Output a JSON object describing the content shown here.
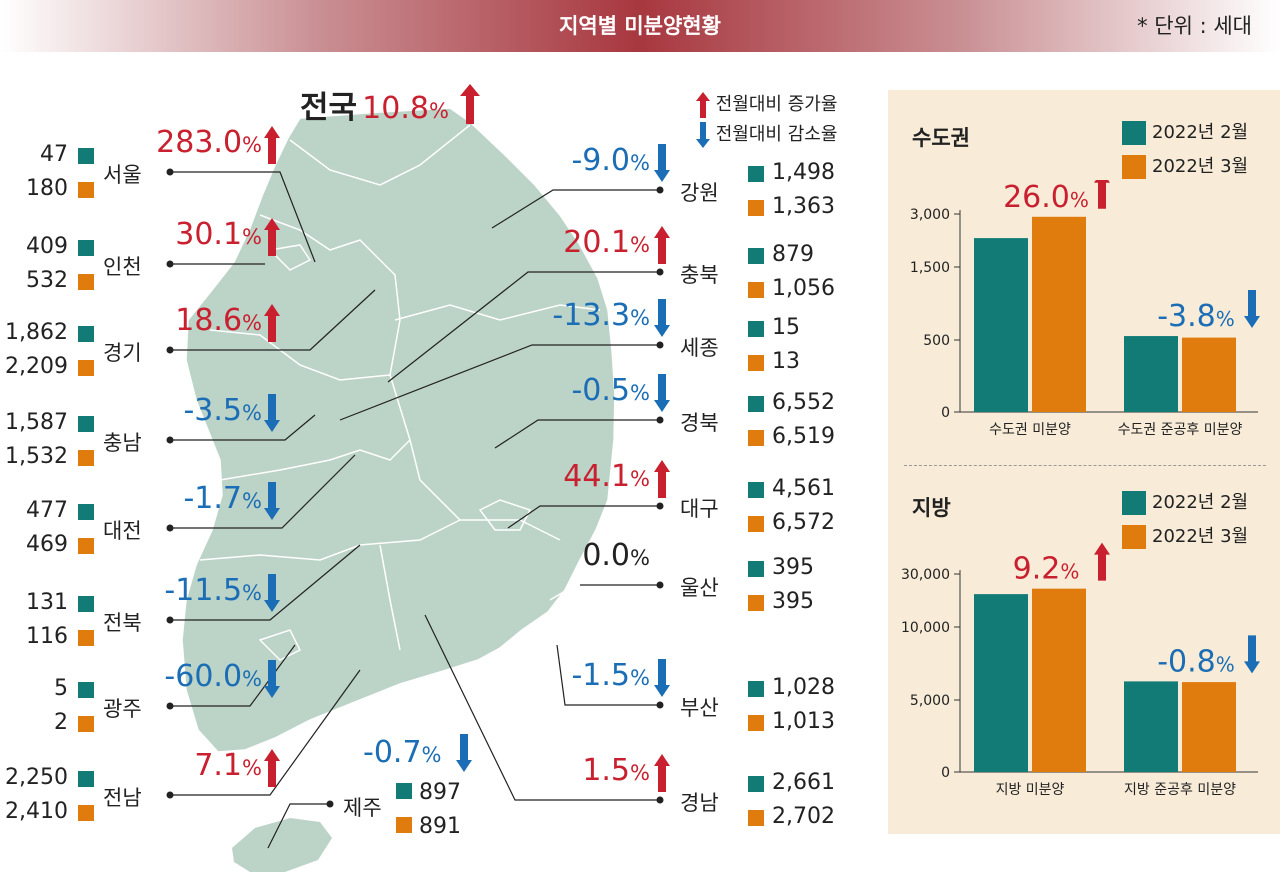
{
  "header": {
    "title": "지역별 미분양현황",
    "unit": "* 단위 : 세대"
  },
  "colors": {
    "feb": "#137b76",
    "mar": "#e07b0e",
    "up": "#c8202f",
    "down": "#1b6eb5",
    "land": "#bcd3c7",
    "panel_bg": "#f8ecd8"
  },
  "national": {
    "name": "전국",
    "rate": "10.8",
    "unit": "%",
    "trend": "up"
  },
  "legend": {
    "up_label": "전월대비 증가율",
    "down_label": "전월대비 감소율"
  },
  "regions_left": [
    {
      "name": "서울",
      "feb": "47",
      "mar": "180",
      "rate": "283.0",
      "trend": "up"
    },
    {
      "name": "인천",
      "feb": "409",
      "mar": "532",
      "rate": "30.1",
      "trend": "up"
    },
    {
      "name": "경기",
      "feb": "1,862",
      "mar": "2,209",
      "rate": "18.6",
      "trend": "up"
    },
    {
      "name": "충남",
      "feb": "1,587",
      "mar": "1,532",
      "rate": "-3.5",
      "trend": "down"
    },
    {
      "name": "대전",
      "feb": "477",
      "mar": "469",
      "rate": "-1.7",
      "trend": "down"
    },
    {
      "name": "전북",
      "feb": "131",
      "mar": "116",
      "rate": "-11.5",
      "trend": "down"
    },
    {
      "name": "광주",
      "feb": "5",
      "mar": "2",
      "rate": "-60.0",
      "trend": "down"
    },
    {
      "name": "전남",
      "feb": "2,250",
      "mar": "2,410",
      "rate": "7.1",
      "trend": "up"
    }
  ],
  "regions_right": [
    {
      "name": "강원",
      "feb": "1,498",
      "mar": "1,363",
      "rate": "-9.0",
      "trend": "down"
    },
    {
      "name": "충북",
      "feb": "879",
      "mar": "1,056",
      "rate": "20.1",
      "trend": "up"
    },
    {
      "name": "세종",
      "feb": "15",
      "mar": "13",
      "rate": "-13.3",
      "trend": "down"
    },
    {
      "name": "경북",
      "feb": "6,552",
      "mar": "6,519",
      "rate": "-0.5",
      "trend": "down"
    },
    {
      "name": "대구",
      "feb": "4,561",
      "mar": "6,572",
      "rate": "44.1",
      "trend": "up"
    },
    {
      "name": "울산",
      "feb": "395",
      "mar": "395",
      "rate": "0.0",
      "trend": "flat"
    },
    {
      "name": "부산",
      "feb": "1,028",
      "mar": "1,013",
      "rate": "-1.5",
      "trend": "down"
    },
    {
      "name": "경남",
      "feb": "2,661",
      "mar": "2,702",
      "rate": "1.5",
      "trend": "up"
    }
  ],
  "jeju": {
    "name": "제주",
    "feb": "897",
    "mar": "891",
    "rate": "-0.7",
    "trend": "down"
  },
  "chart_data": [
    {
      "type": "bar",
      "title": "수도권",
      "legend": [
        "2022년 2월",
        "2022년 3월"
      ],
      "categories": [
        "수도권 미분양",
        "수도권 준공후 미분양"
      ],
      "series": [
        {
          "name": "2022년 2월",
          "values": [
            2318,
            554
          ]
        },
        {
          "name": "2022년 3월",
          "values": [
            2921,
            533
          ]
        }
      ],
      "rate_labels": [
        "26.0",
        "-3.8"
      ],
      "rate_trends": [
        "up",
        "down"
      ],
      "yticks": [
        "3,000",
        "1,500",
        "500",
        "0"
      ],
      "ytick_values": [
        3000,
        1500,
        500,
        0
      ]
    },
    {
      "type": "bar",
      "title": "지방",
      "legend": [
        "2022년 2월",
        "2022년 3월"
      ],
      "categories": [
        "지방 미분양",
        "지방 준공후 미분양"
      ],
      "series": [
        {
          "name": "2022년 2월",
          "values": [
            22408,
            6276
          ]
        },
        {
          "name": "2022년 3월",
          "values": [
            24465,
            6226
          ]
        }
      ],
      "rate_labels": [
        "9.2",
        "-0.8"
      ],
      "rate_trends": [
        "up",
        "down"
      ],
      "yticks": [
        "30,000",
        "10,000",
        "5,000",
        "0"
      ],
      "ytick_values": [
        30000,
        10000,
        5000,
        0
      ]
    }
  ]
}
